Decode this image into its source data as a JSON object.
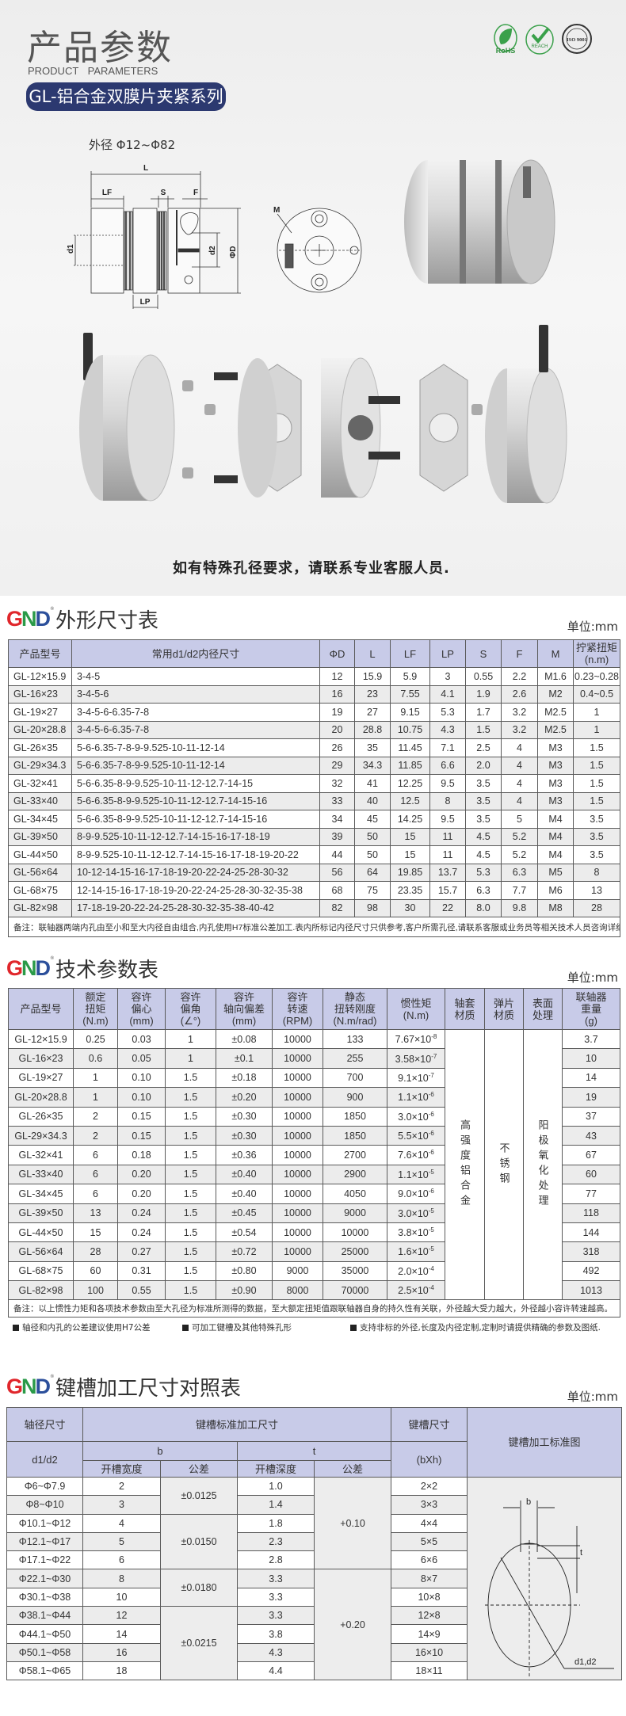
{
  "header": {
    "title": "产品参数",
    "subtitle": "PRODUCT   PARAMETERS",
    "series": "GL-铝合金双膜片夹紧系列",
    "certifications": [
      "RoHS",
      "REACH",
      "ISO 9001"
    ],
    "outer_diameter_range": "外径 Φ12~Φ82",
    "drawing_labels": {
      "L": "L",
      "LF": "LF",
      "S": "S",
      "F": "F",
      "d1": "d1",
      "d2": "d2",
      "D": "ΦD",
      "LP": "LP",
      "M": "M"
    },
    "caption": "如有特殊孔径要求，请联系专业客服人员."
  },
  "brand": {
    "logo": "GND",
    "colors": {
      "G": "#e0262b",
      "N": "#2a9a48",
      "D": "#2b4f9b"
    }
  },
  "colors": {
    "header_fill": "#c8cbe8",
    "pill": "#2c3970",
    "zebra": "#ececec"
  },
  "dimension_table": {
    "title": "外形尺寸表",
    "unit": "单位:mm",
    "columns": [
      "产品型号",
      "常用d1/d2内径尺寸",
      "ΦD",
      "L",
      "LF",
      "LP",
      "S",
      "F",
      "M",
      "拧紧扭矩\n(n.m)"
    ],
    "rows": [
      [
        "GL-12×15.9",
        "3-4-5",
        "12",
        "15.9",
        "5.9",
        "3",
        "0.55",
        "2.2",
        "M1.6",
        "0.23~0.28"
      ],
      [
        "GL-16×23",
        "3-4-5-6",
        "16",
        "23",
        "7.55",
        "4.1",
        "1.9",
        "2.6",
        "M2",
        "0.4~0.5"
      ],
      [
        "GL-19×27",
        "3-4-5-6-6.35-7-8",
        "19",
        "27",
        "9.15",
        "5.3",
        "1.7",
        "3.2",
        "M2.5",
        "1"
      ],
      [
        "GL-20×28.8",
        "3-4-5-6-6.35-7-8",
        "20",
        "28.8",
        "10.75",
        "4.3",
        "1.5",
        "3.2",
        "M2.5",
        "1"
      ],
      [
        "GL-26×35",
        "5-6-6.35-7-8-9-9.525-10-11-12-14",
        "26",
        "35",
        "11.45",
        "7.1",
        "2.5",
        "4",
        "M3",
        "1.5"
      ],
      [
        "GL-29×34.3",
        "5-6-6.35-7-8-9-9.525-10-11-12-14",
        "29",
        "34.3",
        "11.85",
        "6.6",
        "2.0",
        "4",
        "M3",
        "1.5"
      ],
      [
        "GL-32×41",
        "5-6-6.35-8-9-9.525-10-11-12-12.7-14-15",
        "32",
        "41",
        "12.25",
        "9.5",
        "3.5",
        "4",
        "M3",
        "1.5"
      ],
      [
        "GL-33×40",
        "5-6-6.35-8-9-9.525-10-11-12-12.7-14-15-16",
        "33",
        "40",
        "12.5",
        "8",
        "3.5",
        "4",
        "M3",
        "1.5"
      ],
      [
        "GL-34×45",
        "5-6-6.35-8-9-9.525-10-11-12-12.7-14-15-16",
        "34",
        "45",
        "14.25",
        "9.5",
        "3.5",
        "5",
        "M4",
        "3.5"
      ],
      [
        "GL-39×50",
        "8-9-9.525-10-11-12-12.7-14-15-16-17-18-19",
        "39",
        "50",
        "15",
        "11",
        "4.5",
        "5.2",
        "M4",
        "3.5"
      ],
      [
        "GL-44×50",
        "8-9-9.525-10-11-12-12.7-14-15-16-17-18-19-20-22",
        "44",
        "50",
        "15",
        "11",
        "4.5",
        "5.2",
        "M4",
        "3.5"
      ],
      [
        "GL-56×64",
        "10-12-14-15-16-17-18-19-20-22-24-25-28-30-32",
        "56",
        "64",
        "19.85",
        "13.7",
        "5.3",
        "6.3",
        "M5",
        "8"
      ],
      [
        "GL-68×75",
        "12-14-15-16-17-18-19-20-22-24-25-28-30-32-35-38",
        "68",
        "75",
        "23.35",
        "15.7",
        "6.3",
        "7.7",
        "M6",
        "13"
      ],
      [
        "GL-82×98",
        "17-18-19-20-22-24-25-28-30-32-35-38-40-42",
        "82",
        "98",
        "30",
        "22",
        "8.0",
        "9.8",
        "M8",
        "28"
      ]
    ],
    "note": "备注：联轴器两端内孔由至小和至大内径自由组合,内孔使用H7标准公差加工.表内所标记内径尺寸只供参考,客户所需孔径,请联系客服或业务员等相关技术人员咨询详细参数."
  },
  "tech_table": {
    "title": "技术参数表",
    "unit": "单位:mm",
    "columns": [
      "产品型号",
      "额定\n扭矩\n(N.m)",
      "容许\n偏心\n(mm)",
      "容许\n偏角\n(∠°)",
      "容许\n轴向偏差\n(mm)",
      "容许\n转速\n(RPM)",
      "静态\n扭转刚度\n(N.m/rad)",
      "惯性矩\n(N.m)",
      "轴套\n材质",
      "弹片\n材质",
      "表面\n处理",
      "联轴器\n重量\n(g)"
    ],
    "sleeve_material": "高强度铝合金",
    "disc_material": "不锈钢",
    "surface_treatment": "阳极氧化处理",
    "rows": [
      {
        "model": "GL-12×15.9",
        "torque": "0.25",
        "eccentric": "0.03",
        "angle": "1",
        "axial": "±0.08",
        "rpm": "10000",
        "stiffness": "133",
        "inertia": "7.67×10",
        "inertia_exp": "-8",
        "weight": "3.7"
      },
      {
        "model": "GL-16×23",
        "torque": "0.6",
        "eccentric": "0.05",
        "angle": "1",
        "axial": "±0.1",
        "rpm": "10000",
        "stiffness": "255",
        "inertia": "3.58×10",
        "inertia_exp": "-7",
        "weight": "10"
      },
      {
        "model": "GL-19×27",
        "torque": "1",
        "eccentric": "0.10",
        "angle": "1.5",
        "axial": "±0.18",
        "rpm": "10000",
        "stiffness": "700",
        "inertia": "9.1×10",
        "inertia_exp": "-7",
        "weight": "14"
      },
      {
        "model": "GL-20×28.8",
        "torque": "1",
        "eccentric": "0.10",
        "angle": "1.5",
        "axial": "±0.20",
        "rpm": "10000",
        "stiffness": "900",
        "inertia": "1.1×10",
        "inertia_exp": "-6",
        "weight": "19"
      },
      {
        "model": "GL-26×35",
        "torque": "2",
        "eccentric": "0.15",
        "angle": "1.5",
        "axial": "±0.30",
        "rpm": "10000",
        "stiffness": "1850",
        "inertia": "3.0×10",
        "inertia_exp": "-6",
        "weight": "37"
      },
      {
        "model": "GL-29×34.3",
        "torque": "2",
        "eccentric": "0.15",
        "angle": "1.5",
        "axial": "±0.30",
        "rpm": "10000",
        "stiffness": "1850",
        "inertia": "5.5×10",
        "inertia_exp": "-6",
        "weight": "43"
      },
      {
        "model": "GL-32×41",
        "torque": "6",
        "eccentric": "0.18",
        "angle": "1.5",
        "axial": "±0.36",
        "rpm": "10000",
        "stiffness": "2700",
        "inertia": "7.6×10",
        "inertia_exp": "-6",
        "weight": "67"
      },
      {
        "model": "GL-33×40",
        "torque": "6",
        "eccentric": "0.20",
        "angle": "1.5",
        "axial": "±0.40",
        "rpm": "10000",
        "stiffness": "2900",
        "inertia": "1.1×10",
        "inertia_exp": "-5",
        "weight": "60"
      },
      {
        "model": "GL-34×45",
        "torque": "6",
        "eccentric": "0.20",
        "angle": "1.5",
        "axial": "±0.40",
        "rpm": "10000",
        "stiffness": "4050",
        "inertia": "9.0×10",
        "inertia_exp": "-6",
        "weight": "77"
      },
      {
        "model": "GL-39×50",
        "torque": "13",
        "eccentric": "0.24",
        "angle": "1.5",
        "axial": "±0.45",
        "rpm": "10000",
        "stiffness": "9000",
        "inertia": "3.0×10",
        "inertia_exp": "-5",
        "weight": "118"
      },
      {
        "model": "GL-44×50",
        "torque": "15",
        "eccentric": "0.24",
        "angle": "1.5",
        "axial": "±0.54",
        "rpm": "10000",
        "stiffness": "10000",
        "inertia": "3.8×10",
        "inertia_exp": "-5",
        "weight": "144"
      },
      {
        "model": "GL-56×64",
        "torque": "28",
        "eccentric": "0.27",
        "angle": "1.5",
        "axial": "±0.72",
        "rpm": "10000",
        "stiffness": "25000",
        "inertia": "1.6×10",
        "inertia_exp": "-5",
        "weight": "318"
      },
      {
        "model": "GL-68×75",
        "torque": "60",
        "eccentric": "0.31",
        "angle": "1.5",
        "axial": "±0.80",
        "rpm": "9000",
        "stiffness": "35000",
        "inertia": "2.0×10",
        "inertia_exp": "-4",
        "weight": "492"
      },
      {
        "model": "GL-82×98",
        "torque": "100",
        "eccentric": "0.55",
        "angle": "1.5",
        "axial": "±0.90",
        "rpm": "8000",
        "stiffness": "70000",
        "inertia": "2.5×10",
        "inertia_exp": "-4",
        "weight": "1013"
      }
    ],
    "note": "备注：以上惯性力矩和各项技术参数由至大孔径为标准所测得的数据，至大额定扭矩值跟联轴器自身的持久性有关联，外径越大受力越大，外径越小容许转速越高。",
    "bullets": [
      "轴径和内孔的公差建议使用H7公差",
      "可加工键槽及其他特殊孔形",
      "支持非标的外径,长度及内径定制,定制时请提供精确的参数及图纸."
    ]
  },
  "keyway_table": {
    "title": "键槽加工尺寸对照表",
    "unit": "单位:mm",
    "headers": {
      "shaft": "轴径尺寸",
      "standard": "键槽标准加工尺寸",
      "key_size": "键槽尺寸",
      "diagram": "键槽加工标准图",
      "d": "d1/d2",
      "b": "b",
      "t": "t",
      "bxh": "(bXh)",
      "width": "开槽宽度",
      "tol_b": "公差",
      "depth": "开槽深度",
      "tol_t": "公差"
    },
    "rows": [
      {
        "shaft": "Φ6~Φ7.9",
        "b": "2",
        "t": "1.0",
        "size": "2×2"
      },
      {
        "shaft": "Φ8~Φ10",
        "b": "3",
        "t": "1.4",
        "size": "3×3"
      },
      {
        "shaft": "Φ10.1~Φ12",
        "b": "4",
        "t": "1.8",
        "size": "4×4"
      },
      {
        "shaft": "Φ12.1~Φ17",
        "b": "5",
        "t": "2.3",
        "size": "5×5"
      },
      {
        "shaft": "Φ17.1~Φ22",
        "b": "6",
        "t": "2.8",
        "size": "6×6"
      },
      {
        "shaft": "Φ22.1~Φ30",
        "b": "8",
        "t": "3.3",
        "size": "8×7"
      },
      {
        "shaft": "Φ30.1~Φ38",
        "b": "10",
        "t": "3.3",
        "size": "10×8"
      },
      {
        "shaft": "Φ38.1~Φ44",
        "b": "12",
        "t": "3.3",
        "size": "12×8"
      },
      {
        "shaft": "Φ44.1~Φ50",
        "b": "14",
        "t": "3.8",
        "size": "14×9"
      },
      {
        "shaft": "Φ50.1~Φ58",
        "b": "16",
        "t": "4.3",
        "size": "16×10"
      },
      {
        "shaft": "Φ58.1~Φ65",
        "b": "18",
        "t": "4.4",
        "size": "18×11"
      }
    ],
    "b_tolerances": [
      {
        "value": "±0.0125",
        "span": 2
      },
      {
        "value": "±0.0150",
        "span": 3
      },
      {
        "value": "±0.0180",
        "span": 2
      },
      {
        "value": "±0.0215",
        "span": 4
      }
    ],
    "t_tolerances": [
      {
        "value": "+0.10",
        "span": 5
      },
      {
        "value": "+0.20",
        "span": 6
      }
    ],
    "diagram_labels": {
      "b": "b",
      "t": "t",
      "d": "d1,d2"
    }
  }
}
